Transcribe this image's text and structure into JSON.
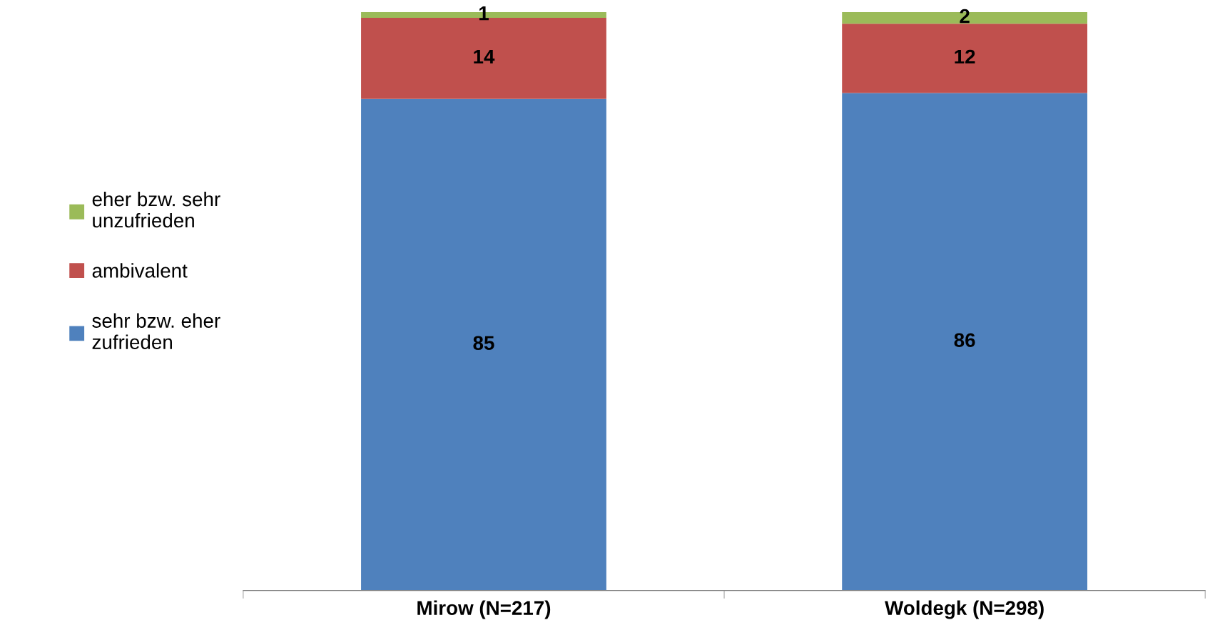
{
  "chart_data": {
    "type": "bar",
    "stacked": true,
    "categories": [
      "Mirow (N=217)",
      "Woldegk (N=298)"
    ],
    "series": [
      {
        "name": "sehr bzw. eher\nzufrieden",
        "color": "#4f81bd",
        "values": [
          85,
          86
        ]
      },
      {
        "name": "ambivalent",
        "color": "#c0504d",
        "values": [
          14,
          12
        ]
      },
      {
        "name": "eher bzw. sehr\nunzufrieden",
        "color": "#9bbb59",
        "values": [
          1,
          2
        ]
      }
    ],
    "ylim": [
      0,
      100
    ],
    "tick_labels": "x",
    "data_labels": true,
    "legend": "left",
    "grid": false
  }
}
